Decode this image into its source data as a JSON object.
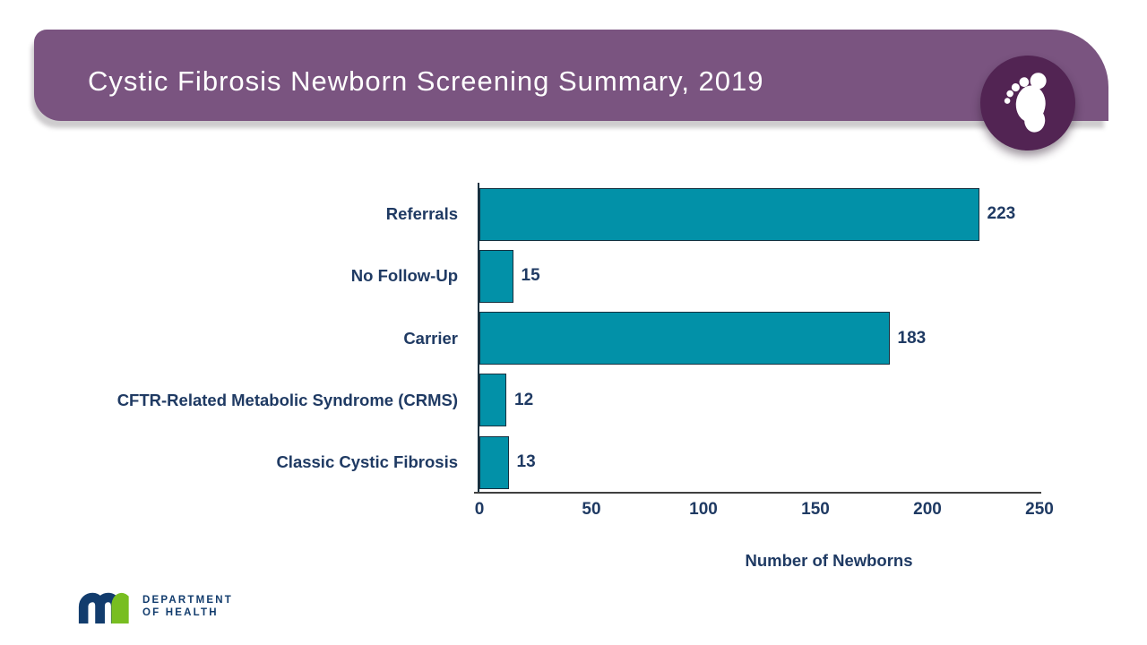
{
  "page": {
    "background": "#ffffff"
  },
  "header": {
    "title": "Cystic Fibrosis Newborn Screening Summary, 2019",
    "banner_color": "#7a5480",
    "badge_color": "#522453",
    "badge_icon": "baby-footprint-icon",
    "text_color": "#ffffff"
  },
  "chart_data": {
    "type": "bar",
    "orientation": "horizontal",
    "categories": [
      "Referrals",
      "No Follow-Up",
      "Carrier",
      "CFTR-Related Metabolic Syndrome (CRMS)",
      "Classic Cystic Fibrosis"
    ],
    "values": [
      223,
      15,
      183,
      12,
      13
    ],
    "title": "",
    "xlabel": "Number of Newborns",
    "ylabel": "",
    "xlim": [
      0,
      250
    ],
    "x_ticks": [
      0,
      50,
      100,
      150,
      200,
      250
    ],
    "grid": false,
    "legend": false,
    "data_labels": true,
    "bar_color": "#0291a8",
    "bar_border_color": "#16303f",
    "text_color": "#1f3a63",
    "axis_color": "#404040"
  },
  "footer": {
    "logo_icon": "mn-logo",
    "org_line1": "DEPARTMENT",
    "org_line2": "OF HEALTH",
    "logo_blue": "#123c6d",
    "logo_green": "#78be21",
    "text_color": "#123c6d"
  }
}
